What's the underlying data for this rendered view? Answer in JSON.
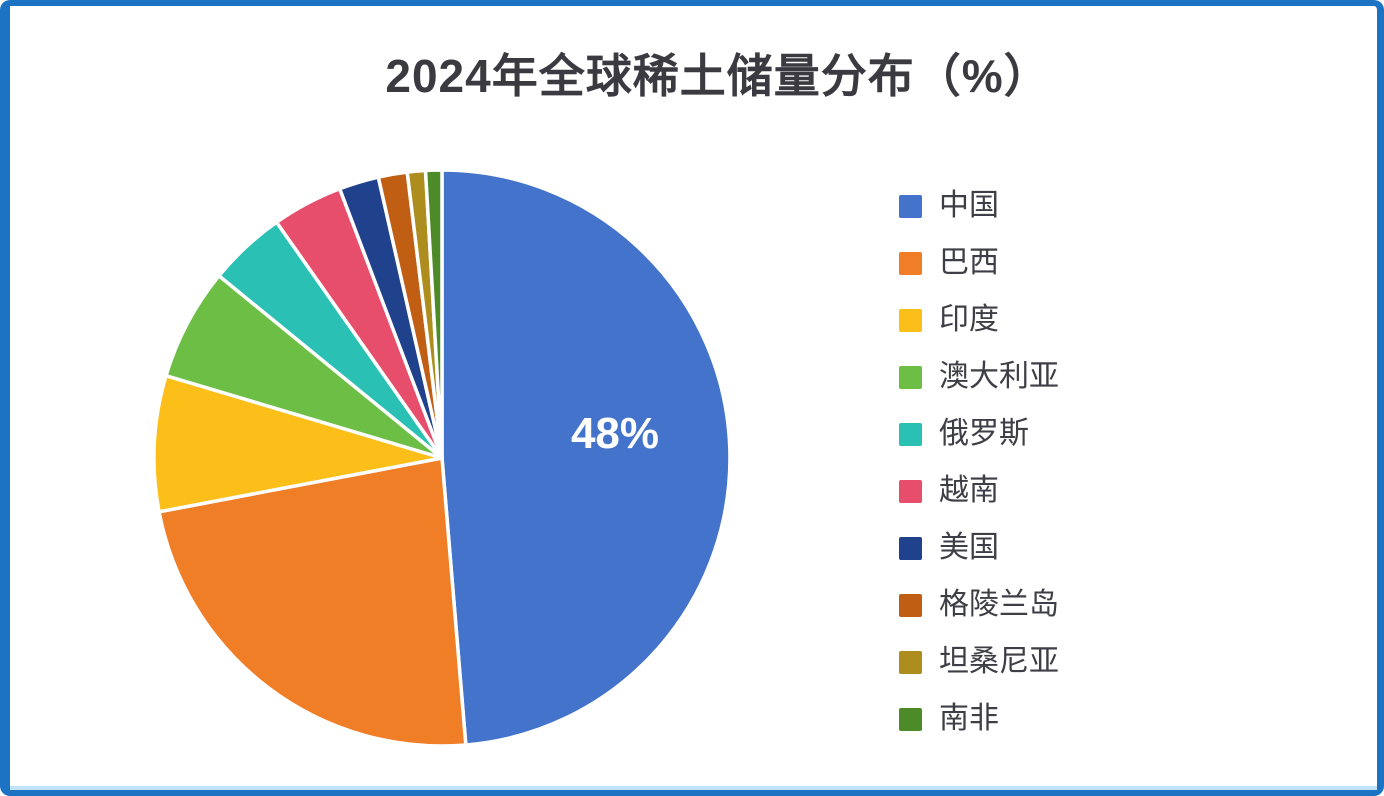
{
  "frame": {
    "border_color": "#1C73C4",
    "bottom_accent_color": "#C2E4F8"
  },
  "chart_data": {
    "type": "pie",
    "title": "2024年全球稀土储量分布（%）",
    "start_angle_deg": 0,
    "direction": "clockwise",
    "legend_position": "right",
    "data_label": {
      "text": "48%",
      "series": "中国",
      "color": "#FFFFFF"
    },
    "series": [
      {
        "label": "中国",
        "value": 48,
        "color": "#4473CB"
      },
      {
        "label": "巴西",
        "value": 23,
        "color": "#F07E27"
      },
      {
        "label": "印度",
        "value": 7.5,
        "color": "#FCBE18"
      },
      {
        "label": "澳大利亚",
        "value": 6.2,
        "color": "#6CBE45"
      },
      {
        "label": "俄罗斯",
        "value": 4.3,
        "color": "#2AC0B4"
      },
      {
        "label": "越南",
        "value": 3.9,
        "color": "#E64E6C"
      },
      {
        "label": "美国",
        "value": 2.2,
        "color": "#20418C"
      },
      {
        "label": "格陵兰岛",
        "value": 1.6,
        "color": "#C05E14"
      },
      {
        "label": "坦桑尼亚",
        "value": 1.0,
        "color": "#AD8D1D"
      },
      {
        "label": "南非",
        "value": 0.9,
        "color": "#4C8B28"
      }
    ]
  }
}
